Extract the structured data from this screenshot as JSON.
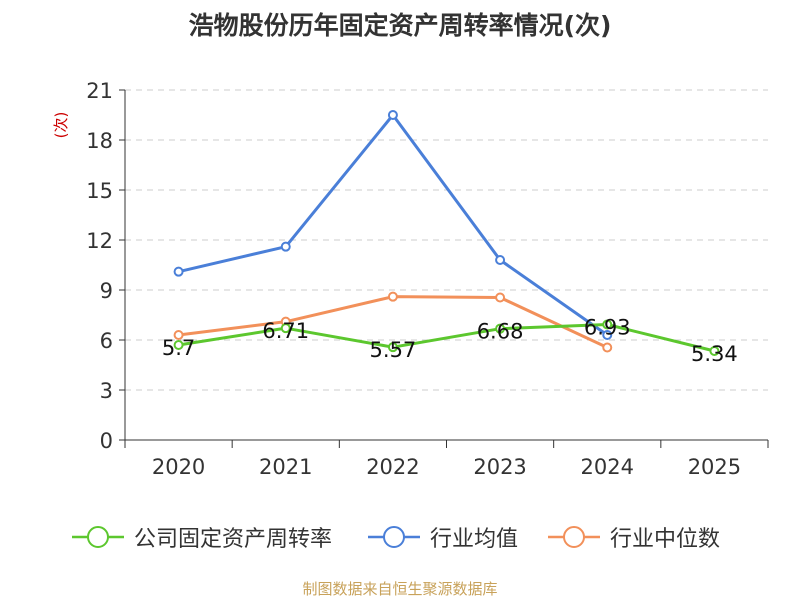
{
  "title": "浩物股份历年固定资产周转率情况(次)",
  "source": "制图数据来自恒生聚源数据库",
  "chart_data": {
    "type": "line",
    "title": "浩物股份历年固定资产周转率情况(次)",
    "ylabel": "(次)",
    "xlabel": "",
    "ylim": [
      0,
      21
    ],
    "yticks": [
      "0",
      "3",
      "6",
      "9",
      "12",
      "15",
      "18",
      "21"
    ],
    "categories": [
      "2020",
      "2021",
      "2022",
      "2023",
      "2024",
      "2025"
    ],
    "grid": true,
    "legend_position": "bottom",
    "series": [
      {
        "name": "公司固定资产周转率",
        "color": "#5cc72e",
        "values": [
          5.7,
          6.71,
          5.57,
          6.68,
          6.93,
          5.34
        ],
        "labels": [
          "5.7",
          "6.71",
          "5.57",
          "6.68",
          "6.93",
          "5.34"
        ]
      },
      {
        "name": "行业均值",
        "color": "#4a7fd8",
        "values": [
          10.1,
          11.6,
          19.5,
          10.8,
          6.3,
          null
        ]
      },
      {
        "name": "行业中位数",
        "color": "#f2905a",
        "values": [
          6.3,
          7.1,
          8.6,
          8.55,
          5.55,
          null
        ]
      }
    ]
  }
}
